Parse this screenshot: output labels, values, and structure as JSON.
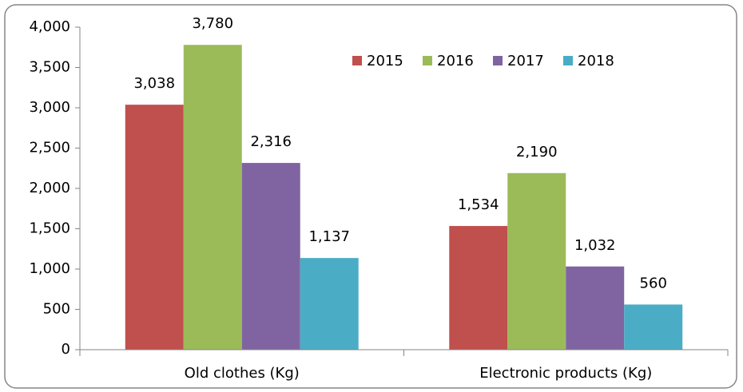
{
  "chart_data": {
    "type": "bar",
    "categories": [
      "Old clothes (Kg)",
      "Electronic products (Kg)"
    ],
    "series": [
      {
        "name": "2015",
        "color": "#c0504d",
        "values": [
          3038,
          1534
        ],
        "value_labels": [
          "3,038",
          "1,534"
        ]
      },
      {
        "name": "2016",
        "color": "#9bbb59",
        "values": [
          3780,
          2190
        ],
        "value_labels": [
          "3,780",
          "2,190"
        ]
      },
      {
        "name": "2017",
        "color": "#8064a2",
        "values": [
          2316,
          1032
        ],
        "value_labels": [
          "2,316",
          "1,032"
        ]
      },
      {
        "name": "2018",
        "color": "#4bacc6",
        "values": [
          1137,
          560
        ],
        "value_labels": [
          "1,137",
          "560"
        ]
      }
    ],
    "ylim": [
      0,
      4000
    ],
    "yticks": [
      0,
      {
        "value": 500,
        "label": "500"
      },
      {
        "value": 1000,
        "label": "1,000"
      },
      {
        "value": 1500,
        "label": "1,500"
      },
      {
        "value": 2000,
        "label": "2,000"
      },
      {
        "value": 2500,
        "label": "2,500"
      },
      {
        "value": 3000,
        "label": "3,000"
      },
      {
        "value": 3500,
        "label": "3,500"
      },
      {
        "value": 4000,
        "label": "4,000"
      }
    ],
    "legend": "top-right"
  }
}
